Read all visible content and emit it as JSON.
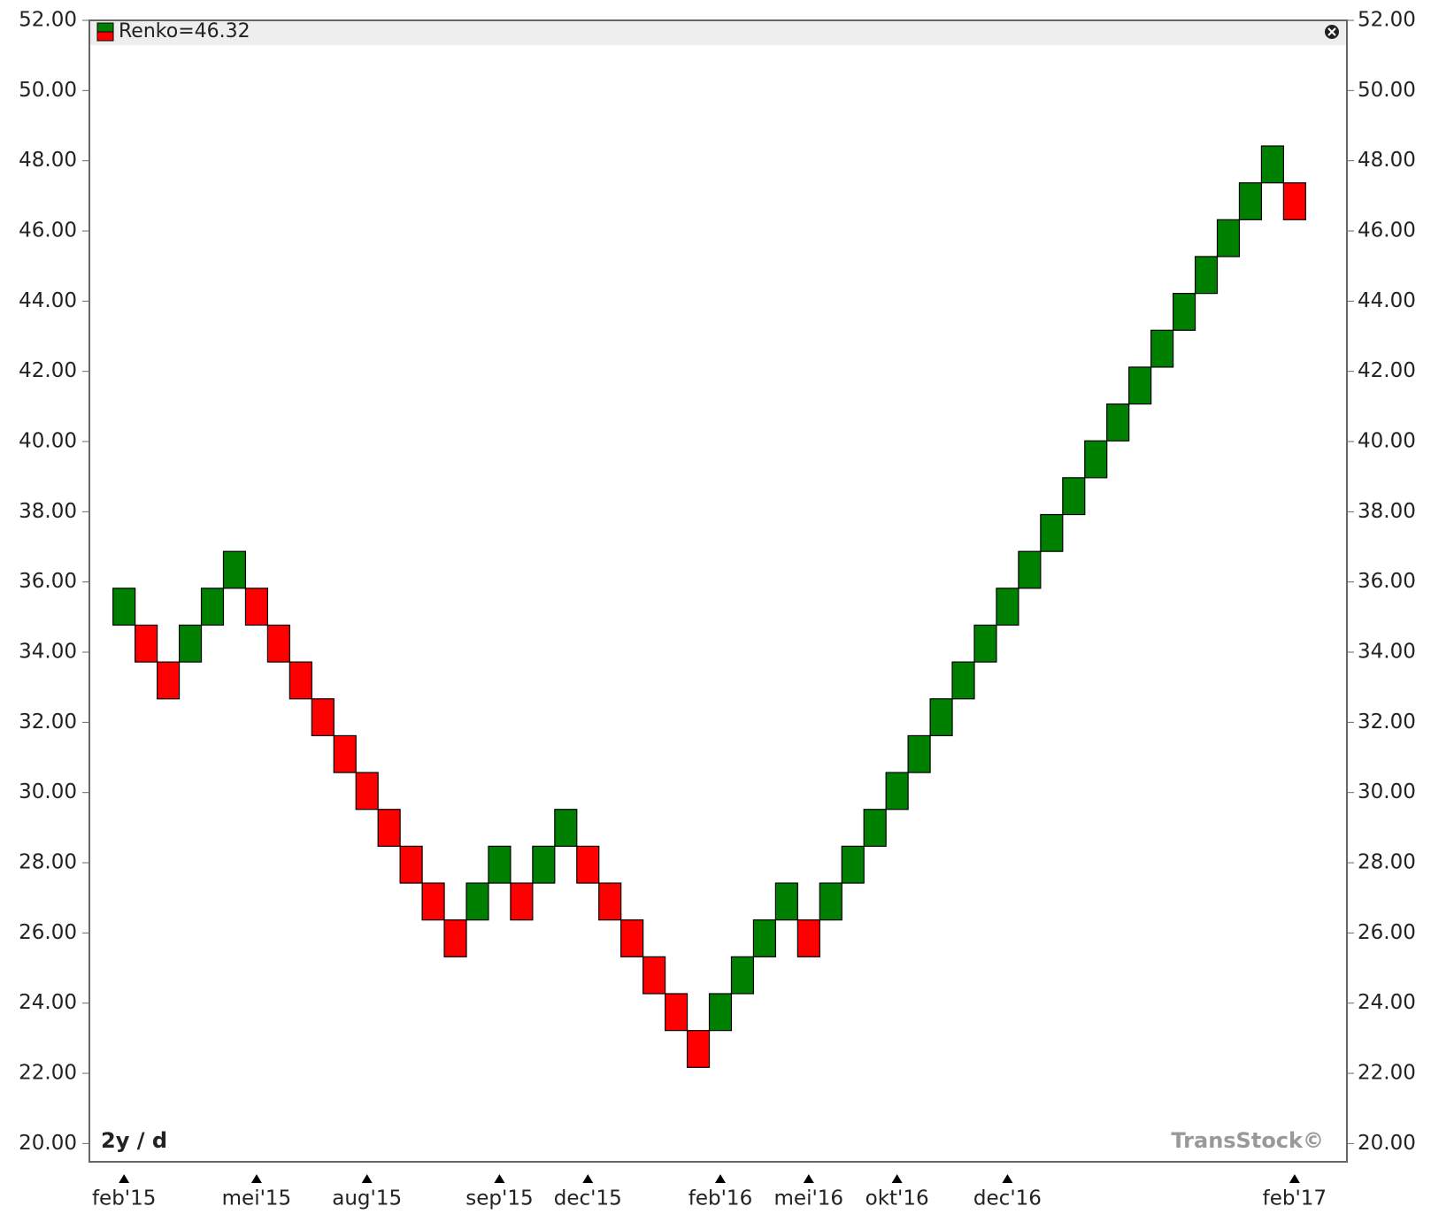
{
  "chart_data": {
    "type": "renko",
    "legend": "Renko=46.32",
    "period_label": "2y / d",
    "watermark": "TransStock©",
    "up_color": "#008000",
    "down_color": "#ff0000",
    "open": [
      34.77,
      34.77,
      33.72,
      33.72,
      34.77,
      35.82,
      35.82,
      34.77,
      33.72,
      32.67,
      31.62,
      30.57,
      29.52,
      28.47,
      27.42,
      26.37,
      26.37,
      27.42,
      27.42,
      27.42,
      28.47,
      28.47,
      27.42,
      26.37,
      25.32,
      24.27,
      23.22,
      23.22,
      24.27,
      25.32,
      26.37,
      26.37,
      26.37,
      27.42,
      28.47,
      29.52,
      30.57,
      31.62,
      32.67,
      33.72,
      34.77,
      35.82,
      36.87,
      37.92,
      38.97,
      40.02,
      41.07,
      42.12,
      43.17,
      44.22,
      45.27,
      46.32,
      47.37,
      47.37
    ],
    "close": [
      35.82,
      33.72,
      32.67,
      34.77,
      35.82,
      36.87,
      34.77,
      33.72,
      32.67,
      31.62,
      30.57,
      29.52,
      28.47,
      27.42,
      26.37,
      25.32,
      27.42,
      28.47,
      26.37,
      28.47,
      29.52,
      27.42,
      26.37,
      25.32,
      24.27,
      23.22,
      22.17,
      24.27,
      25.32,
      26.37,
      27.42,
      25.32,
      27.42,
      28.47,
      29.52,
      30.57,
      31.62,
      32.67,
      33.72,
      34.77,
      35.82,
      36.87,
      37.92,
      38.97,
      40.02,
      41.07,
      42.12,
      43.17,
      44.22,
      45.27,
      46.32,
      47.37,
      48.42,
      46.32
    ],
    "xlim": [
      -1.57,
      55.37
    ],
    "xticks": [
      {
        "value": 0,
        "label": "feb'15"
      },
      {
        "value": 6,
        "label": "mei'15"
      },
      {
        "value": 11,
        "label": "aug'15"
      },
      {
        "value": 17,
        "label": "sep'15"
      },
      {
        "value": 21,
        "label": "dec'15"
      },
      {
        "value": 27,
        "label": "feb'16"
      },
      {
        "value": 31,
        "label": "mei'16"
      },
      {
        "value": 35,
        "label": "okt'16"
      },
      {
        "value": 40,
        "label": "dec'16"
      },
      {
        "value": 53,
        "label": "feb'17"
      }
    ],
    "ylim": [
      19.48,
      52
    ],
    "yticks": [
      {
        "value": 20,
        "label": "20.00"
      },
      {
        "value": 22,
        "label": "22.00"
      },
      {
        "value": 24,
        "label": "24.00"
      },
      {
        "value": 26,
        "label": "26.00"
      },
      {
        "value": 28,
        "label": "28.00"
      },
      {
        "value": 30,
        "label": "30.00"
      },
      {
        "value": 32,
        "label": "32.00"
      },
      {
        "value": 34,
        "label": "34.00"
      },
      {
        "value": 36,
        "label": "36.00"
      },
      {
        "value": 38,
        "label": "38.00"
      },
      {
        "value": 40,
        "label": "40.00"
      },
      {
        "value": 42,
        "label": "42.00"
      },
      {
        "value": 44,
        "label": "44.00"
      },
      {
        "value": 46,
        "label": "46.00"
      },
      {
        "value": 48,
        "label": "48.00"
      },
      {
        "value": 50,
        "label": "50.00"
      },
      {
        "value": 52,
        "label": "52.00"
      }
    ]
  }
}
